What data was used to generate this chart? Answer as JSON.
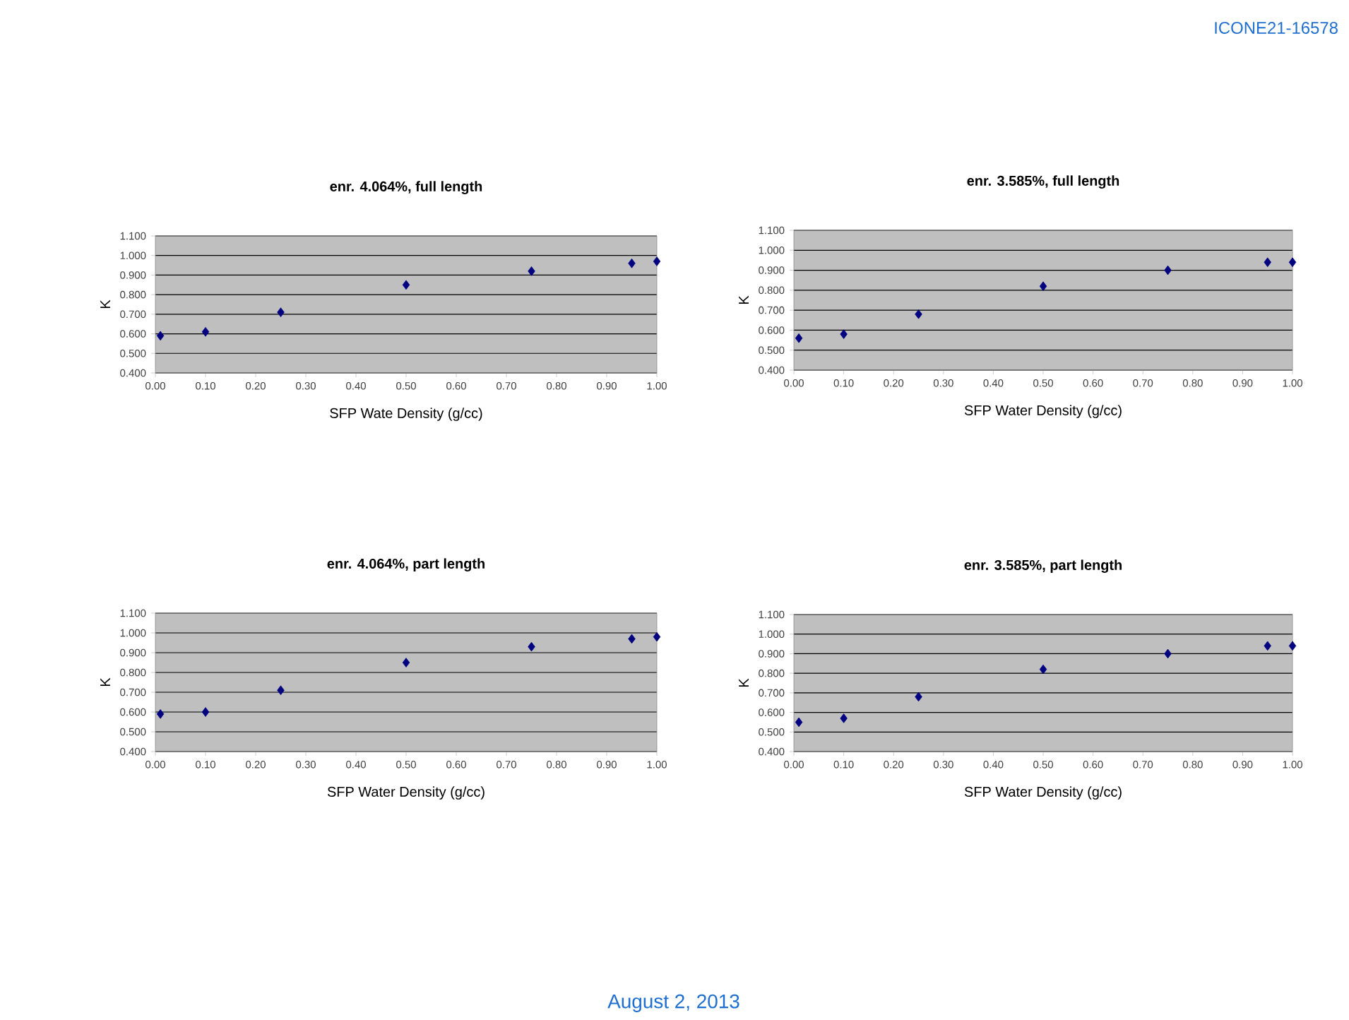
{
  "chart_data": [
    {
      "type": "scatter",
      "title": "enr. 4.064%, full length",
      "xlabel": "SFP Wate Density (g/cc)",
      "ylabel": "K",
      "annotations": [
        "ICONE21-16578",
        "August 2, 2013"
      ],
      "x": [
        0.01,
        0.1,
        0.25,
        0.5,
        0.75,
        0.95,
        1.0
      ],
      "series": [
        {
          "color": "#000080",
          "values": [
            0.59,
            0.61,
            0.71,
            0.85,
            0.92,
            0.96,
            0.97
          ]
        }
      ],
      "xlim": [
        0,
        1
      ],
      "ylim": [
        0.4,
        1.1
      ],
      "xticks": [
        {
          "value": 0,
          "label": "0.00"
        },
        {
          "value": 0.1,
          "label": "0.10"
        },
        {
          "value": 0.2,
          "label": "0.20"
        },
        {
          "value": 0.3,
          "label": "0.30"
        },
        {
          "value": 0.4,
          "label": "0.40"
        },
        {
          "value": 0.5,
          "label": "0.50"
        },
        {
          "value": 0.6,
          "label": "0.60"
        },
        {
          "value": 0.7,
          "label": "0.70"
        },
        {
          "value": 0.8,
          "label": "0.80"
        },
        {
          "value": 0.9,
          "label": "0.90"
        },
        {
          "value": 1,
          "label": "1.00"
        }
      ],
      "yticks": [
        {
          "value": 0.4,
          "label": "0.400"
        },
        {
          "value": 0.5,
          "label": "0.500"
        },
        {
          "value": 0.6,
          "label": "0.600"
        },
        {
          "value": 0.7,
          "label": "0.700"
        },
        {
          "value": 0.8,
          "label": "0.800"
        },
        {
          "value": 0.9,
          "label": "0.900"
        },
        {
          "value": 1,
          "label": "1.000"
        },
        {
          "value": 1.1,
          "label": "1.100"
        }
      ],
      "grid": "y",
      "marker": "diamond"
    },
    {
      "type": "scatter",
      "title": "enr. 3.585%, full length",
      "xlabel": "SFP Water Density (g/cc)",
      "ylabel": "K",
      "x": [
        0.01,
        0.1,
        0.25,
        0.5,
        0.75,
        0.95,
        1.0
      ],
      "series": [
        {
          "color": "#000080",
          "values": [
            0.56,
            0.58,
            0.68,
            0.82,
            0.9,
            0.94,
            0.94
          ]
        }
      ],
      "xlim": [
        0,
        1
      ],
      "ylim": [
        0.4,
        1.1
      ],
      "xticks": [
        {
          "value": 0,
          "label": "0.00"
        },
        {
          "value": 0.1,
          "label": "0.10"
        },
        {
          "value": 0.2,
          "label": "0.20"
        },
        {
          "value": 0.3,
          "label": "0.30"
        },
        {
          "value": 0.4,
          "label": "0.40"
        },
        {
          "value": 0.5,
          "label": "0.50"
        },
        {
          "value": 0.6,
          "label": "0.60"
        },
        {
          "value": 0.7,
          "label": "0.70"
        },
        {
          "value": 0.8,
          "label": "0.80"
        },
        {
          "value": 0.9,
          "label": "0.90"
        },
        {
          "value": 1,
          "label": "1.00"
        }
      ],
      "yticks": [
        {
          "value": 0.4,
          "label": "0.400"
        },
        {
          "value": 0.5,
          "label": "0.500"
        },
        {
          "value": 0.6,
          "label": "0.600"
        },
        {
          "value": 0.7,
          "label": "0.700"
        },
        {
          "value": 0.8,
          "label": "0.800"
        },
        {
          "value": 0.9,
          "label": "0.900"
        },
        {
          "value": 1,
          "label": "1.000"
        },
        {
          "value": 1.1,
          "label": "1.100"
        }
      ],
      "grid": "y",
      "marker": "diamond"
    },
    {
      "type": "scatter",
      "title": "enr. 4.064%, part length",
      "xlabel": "SFP Water Density (g/cc)",
      "ylabel": "K",
      "x": [
        0.01,
        0.1,
        0.25,
        0.5,
        0.75,
        0.95,
        1.0
      ],
      "series": [
        {
          "color": "#000080",
          "values": [
            0.59,
            0.6,
            0.71,
            0.85,
            0.93,
            0.97,
            0.98
          ]
        }
      ],
      "xlim": [
        0,
        1
      ],
      "ylim": [
        0.4,
        1.1
      ],
      "xticks": [
        {
          "value": 0,
          "label": "0.00"
        },
        {
          "value": 0.1,
          "label": "0.10"
        },
        {
          "value": 0.2,
          "label": "0.20"
        },
        {
          "value": 0.3,
          "label": "0.30"
        },
        {
          "value": 0.4,
          "label": "0.40"
        },
        {
          "value": 0.5,
          "label": "0.50"
        },
        {
          "value": 0.6,
          "label": "0.60"
        },
        {
          "value": 0.7,
          "label": "0.70"
        },
        {
          "value": 0.8,
          "label": "0.80"
        },
        {
          "value": 0.9,
          "label": "0.90"
        },
        {
          "value": 1,
          "label": "1.00"
        }
      ],
      "yticks": [
        {
          "value": 0.4,
          "label": "0.400"
        },
        {
          "value": 0.5,
          "label": "0.500"
        },
        {
          "value": 0.6,
          "label": "0.600"
        },
        {
          "value": 0.7,
          "label": "0.700"
        },
        {
          "value": 0.8,
          "label": "0.800"
        },
        {
          "value": 0.9,
          "label": "0.900"
        },
        {
          "value": 1,
          "label": "1.000"
        },
        {
          "value": 1.1,
          "label": "1.100"
        }
      ],
      "grid": "y",
      "marker": "diamond"
    },
    {
      "type": "scatter",
      "title": "enr. 3.585%, part length",
      "xlabel": "SFP Water Density (g/cc)",
      "ylabel": "K",
      "x": [
        0.01,
        0.1,
        0.25,
        0.5,
        0.75,
        0.95,
        1.0
      ],
      "series": [
        {
          "color": "#000080",
          "values": [
            0.55,
            0.57,
            0.68,
            0.82,
            0.9,
            0.94,
            0.94
          ]
        }
      ],
      "xlim": [
        0,
        1
      ],
      "ylim": [
        0.4,
        1.1
      ],
      "xticks": [
        {
          "value": 0,
          "label": "0.00"
        },
        {
          "value": 0.1,
          "label": "0.10"
        },
        {
          "value": 0.2,
          "label": "0.20"
        },
        {
          "value": 0.3,
          "label": "0.30"
        },
        {
          "value": 0.4,
          "label": "0.40"
        },
        {
          "value": 0.5,
          "label": "0.50"
        },
        {
          "value": 0.6,
          "label": "0.60"
        },
        {
          "value": 0.7,
          "label": "0.70"
        },
        {
          "value": 0.8,
          "label": "0.80"
        },
        {
          "value": 0.9,
          "label": "0.90"
        },
        {
          "value": 1,
          "label": "1.00"
        }
      ],
      "yticks": [
        {
          "value": 0.4,
          "label": "0.400"
        },
        {
          "value": 0.5,
          "label": "0.500"
        },
        {
          "value": 0.6,
          "label": "0.600"
        },
        {
          "value": 0.7,
          "label": "0.700"
        },
        {
          "value": 0.8,
          "label": "0.800"
        },
        {
          "value": 0.9,
          "label": "0.900"
        },
        {
          "value": 1,
          "label": "1.000"
        },
        {
          "value": 1.1,
          "label": "1.100"
        }
      ],
      "grid": "y",
      "marker": "diamond"
    }
  ]
}
